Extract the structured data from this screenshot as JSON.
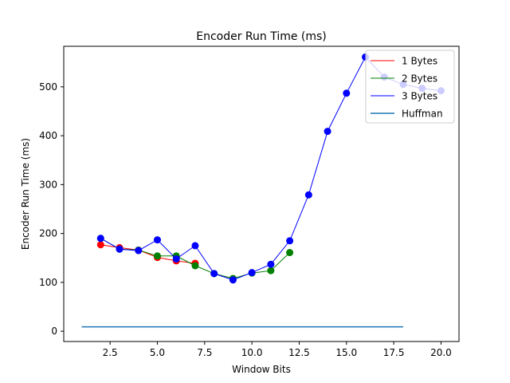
{
  "chart_data": {
    "type": "line",
    "title": "Encoder Run Time (ms)",
    "xlabel": "Window Bits",
    "ylabel": "Encoder Run Time (ms)",
    "xlim": [
      0.05,
      20.95
    ],
    "ylim": [
      -21,
      583
    ],
    "xticks": [
      2.5,
      5.0,
      7.5,
      10.0,
      12.5,
      15.0,
      17.5,
      20.0
    ],
    "xtick_labels": [
      "2.5",
      "5.0",
      "7.5",
      "10.0",
      "12.5",
      "15.0",
      "17.5",
      "20.0"
    ],
    "yticks": [
      0,
      100,
      200,
      300,
      400,
      500
    ],
    "ytick_labels": [
      "0",
      "100",
      "200",
      "300",
      "400",
      "500"
    ],
    "grid": false,
    "legend_position": "top-right",
    "series": [
      {
        "name": "1 Bytes",
        "color": "#ff0000",
        "marker_color": "#ff0000",
        "x": [
          2,
          3,
          4,
          5,
          6,
          7
        ],
        "y": [
          177,
          171,
          166,
          151,
          144,
          139
        ]
      },
      {
        "name": "2 Bytes",
        "color": "#008000",
        "marker_color": "#008000",
        "x": [
          2,
          3,
          4,
          5,
          6,
          7,
          8,
          9,
          10,
          11,
          12
        ],
        "y": [
          190,
          168,
          166,
          154,
          154,
          134,
          118,
          108,
          119,
          124,
          161
        ]
      },
      {
        "name": "3 Bytes",
        "color": "#0000ff",
        "marker_color": "#0000ff",
        "x": [
          2,
          3,
          4,
          5,
          6,
          7,
          8,
          9,
          10,
          11,
          12,
          13,
          14,
          15,
          16,
          17,
          18,
          19,
          20
        ],
        "y": [
          190,
          168,
          165,
          187,
          148,
          175,
          118,
          105,
          120,
          137,
          185,
          279,
          409,
          487,
          561,
          520,
          505,
          497,
          492
        ]
      },
      {
        "name": "Huffman",
        "color": "#1f77b4",
        "marker_color": null,
        "x": [
          1,
          18
        ],
        "y": [
          9,
          9
        ]
      }
    ]
  }
}
